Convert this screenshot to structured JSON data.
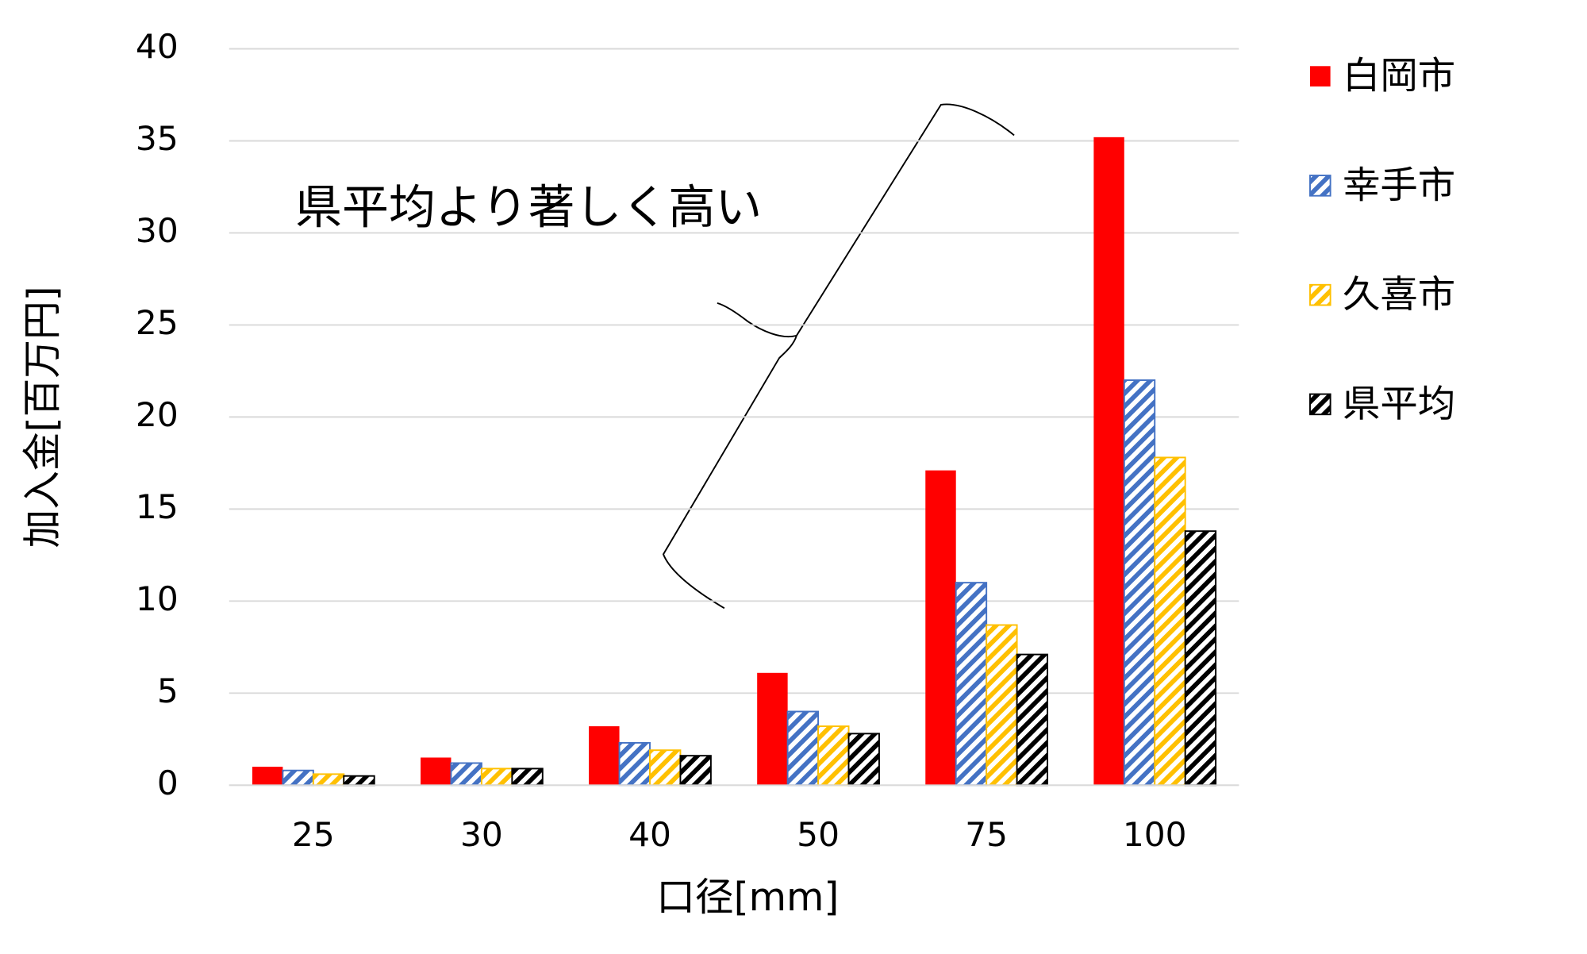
{
  "chart_data": {
    "type": "bar",
    "x_label": "口径[mm]",
    "y_label": "加入金[百万円]",
    "annotation": "県平均より著しく高い",
    "categories": [
      "25",
      "30",
      "40",
      "50",
      "75",
      "100"
    ],
    "series": [
      {
        "name": "白岡市",
        "color": "#ff0000",
        "hatch": false,
        "values": [
          1.0,
          1.5,
          3.2,
          6.1,
          17.1,
          35.2
        ]
      },
      {
        "name": "幸手市",
        "color": "#4472c4",
        "hatch": true,
        "values": [
          0.8,
          1.2,
          2.3,
          4.0,
          11.0,
          22.0
        ]
      },
      {
        "name": "久喜市",
        "color": "#ffc000",
        "hatch": true,
        "values": [
          0.6,
          0.9,
          1.9,
          3.2,
          8.7,
          17.8
        ]
      },
      {
        "name": "県平均",
        "color": "#000000",
        "hatch": true,
        "values": [
          0.5,
          0.9,
          1.6,
          2.8,
          7.1,
          13.8
        ]
      }
    ],
    "ylim": [
      0,
      40
    ],
    "yticks": [
      0,
      5,
      10,
      15,
      20,
      25,
      30,
      35,
      40
    ],
    "grid": true,
    "legend": "right"
  }
}
